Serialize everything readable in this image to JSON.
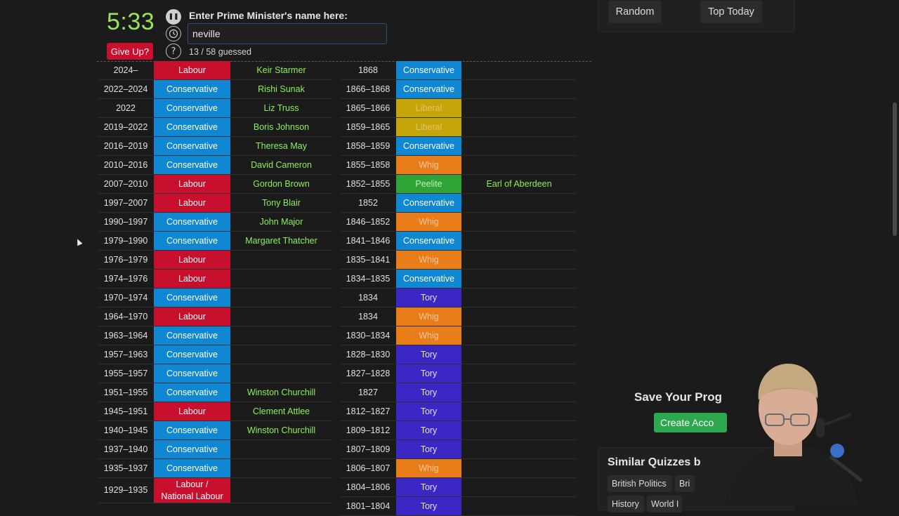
{
  "quiz": {
    "timer": "5:33",
    "give_up_label": "Give Up?",
    "prompt": "Enter Prime Minister's name here:",
    "answer_value": "neville ",
    "progress": "13 / 58 guessed",
    "pause_icon": "pause-icon",
    "clock_icon": "clock-icon",
    "help_icon": "help-icon"
  },
  "sidebar": {
    "random_label": "Random",
    "top_today_label": "Top Today",
    "save_title": "Save Your Prog",
    "create_label": "Create Acco",
    "similar_title": "Similar Quizzes b",
    "tags": [
      "British Politics",
      "Bri",
      "History",
      "World I"
    ]
  },
  "left_table": [
    {
      "years": "2024–",
      "party": "Labour",
      "party_class": "p-labour",
      "name": "Keir Starmer"
    },
    {
      "years": "2022–2024",
      "party": "Conservative",
      "party_class": "p-conservative",
      "name": "Rishi Sunak"
    },
    {
      "years": "2022",
      "party": "Conservative",
      "party_class": "p-conservative",
      "name": "Liz Truss"
    },
    {
      "years": "2019–2022",
      "party": "Conservative",
      "party_class": "p-conservative",
      "name": "Boris Johnson"
    },
    {
      "years": "2016–2019",
      "party": "Conservative",
      "party_class": "p-conservative",
      "name": "Theresa May"
    },
    {
      "years": "2010–2016",
      "party": "Conservative",
      "party_class": "p-conservative",
      "name": "David Cameron"
    },
    {
      "years": "2007–2010",
      "party": "Labour",
      "party_class": "p-labour",
      "name": "Gordon Brown"
    },
    {
      "years": "1997–2007",
      "party": "Labour",
      "party_class": "p-labour",
      "name": "Tony Blair"
    },
    {
      "years": "1990–1997",
      "party": "Conservative",
      "party_class": "p-conservative",
      "name": "John Major"
    },
    {
      "years": "1979–1990",
      "party": "Conservative",
      "party_class": "p-conservative",
      "name": "Margaret Thatcher"
    },
    {
      "years": "1976–1979",
      "party": "Labour",
      "party_class": "p-labour",
      "name": ""
    },
    {
      "years": "1974–1976",
      "party": "Labour",
      "party_class": "p-labour",
      "name": ""
    },
    {
      "years": "1970–1974",
      "party": "Conservative",
      "party_class": "p-conservative",
      "name": ""
    },
    {
      "years": "1964–1970",
      "party": "Labour",
      "party_class": "p-labour",
      "name": ""
    },
    {
      "years": "1963–1964",
      "party": "Conservative",
      "party_class": "p-conservative",
      "name": ""
    },
    {
      "years": "1957–1963",
      "party": "Conservative",
      "party_class": "p-conservative",
      "name": ""
    },
    {
      "years": "1955–1957",
      "party": "Conservative",
      "party_class": "p-conservative",
      "name": ""
    },
    {
      "years": "1951–1955",
      "party": "Conservative",
      "party_class": "p-conservative",
      "name": "Winston Churchill"
    },
    {
      "years": "1945–1951",
      "party": "Labour",
      "party_class": "p-labour",
      "name": "Clement Attlee"
    },
    {
      "years": "1940–1945",
      "party": "Conservative",
      "party_class": "p-conservative",
      "name": "Winston Churchill"
    },
    {
      "years": "1937–1940",
      "party": "Conservative",
      "party_class": "p-conservative",
      "name": ""
    },
    {
      "years": "1935–1937",
      "party": "Conservative",
      "party_class": "p-conservative",
      "name": ""
    },
    {
      "years": "1929–1935",
      "party": "Labour / National Labour",
      "party_class": "p-labour",
      "name": "",
      "tall": true
    }
  ],
  "right_table": [
    {
      "years": "1868",
      "party": "Conservative",
      "party_class": "p-conservative",
      "name": ""
    },
    {
      "years": "1866–1868",
      "party": "Conservative",
      "party_class": "p-conservative",
      "name": ""
    },
    {
      "years": "1865–1866",
      "party": "Liberal",
      "party_class": "p-liberal",
      "name": ""
    },
    {
      "years": "1859–1865",
      "party": "Liberal",
      "party_class": "p-liberal",
      "name": ""
    },
    {
      "years": "1858–1859",
      "party": "Conservative",
      "party_class": "p-conservative",
      "name": ""
    },
    {
      "years": "1855–1858",
      "party": "Whig",
      "party_class": "p-whig",
      "name": ""
    },
    {
      "years": "1852–1855",
      "party": "Peelite",
      "party_class": "p-peelite",
      "name": "Earl of Aberdeen"
    },
    {
      "years": "1852",
      "party": "Conservative",
      "party_class": "p-conservative",
      "name": ""
    },
    {
      "years": "1846–1852",
      "party": "Whig",
      "party_class": "p-whig",
      "name": ""
    },
    {
      "years": "1841–1846",
      "party": "Conservative",
      "party_class": "p-conservative",
      "name": ""
    },
    {
      "years": "1835–1841",
      "party": "Whig",
      "party_class": "p-whig",
      "name": ""
    },
    {
      "years": "1834–1835",
      "party": "Conservative",
      "party_class": "p-conservative",
      "name": ""
    },
    {
      "years": "1834",
      "party": "Tory",
      "party_class": "p-tory",
      "name": ""
    },
    {
      "years": "1834",
      "party": "Whig",
      "party_class": "p-whig",
      "name": ""
    },
    {
      "years": "1830–1834",
      "party": "Whig",
      "party_class": "p-whig",
      "name": ""
    },
    {
      "years": "1828–1830",
      "party": "Tory",
      "party_class": "p-tory",
      "name": ""
    },
    {
      "years": "1827–1828",
      "party": "Tory",
      "party_class": "p-tory",
      "name": ""
    },
    {
      "years": "1827",
      "party": "Tory",
      "party_class": "p-tory",
      "name": ""
    },
    {
      "years": "1812–1827",
      "party": "Tory",
      "party_class": "p-tory",
      "name": ""
    },
    {
      "years": "1809–1812",
      "party": "Tory",
      "party_class": "p-tory",
      "name": ""
    },
    {
      "years": "1807–1809",
      "party": "Tory",
      "party_class": "p-tory",
      "name": ""
    },
    {
      "years": "1806–1807",
      "party": "Whig",
      "party_class": "p-whig",
      "name": ""
    },
    {
      "years": "1804–1806",
      "party": "Tory",
      "party_class": "p-tory",
      "name": ""
    },
    {
      "years": "1801–1804",
      "party": "Tory",
      "party_class": "p-tory",
      "name": ""
    }
  ]
}
